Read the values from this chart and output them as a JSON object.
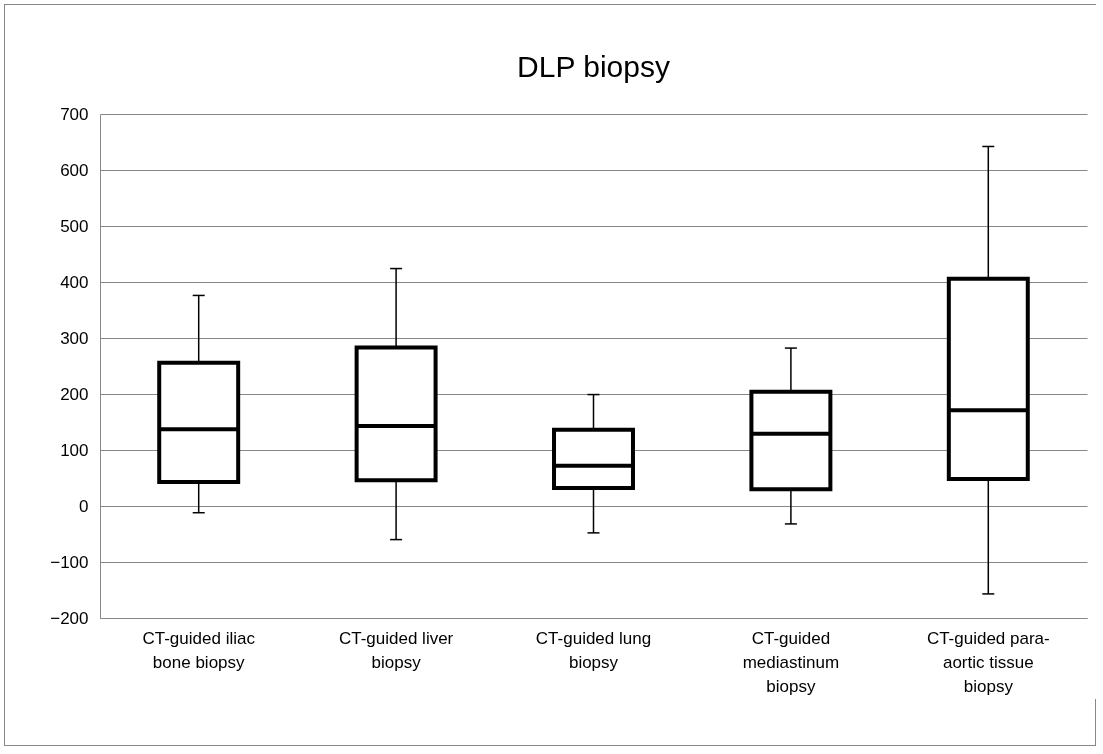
{
  "chart_data": {
    "type": "box",
    "title": "DLP biopsy",
    "categories": [
      "CT-guided iliac bone biopsy",
      "CT-guided liver biopsy",
      "CT-guided lung biopsy",
      "CT-guided mediastinum biopsy",
      "CT-guided para-aortic tissue biopsy"
    ],
    "boxes": [
      {
        "low": -12,
        "q1": 43,
        "median": 137,
        "q3": 256,
        "high": 376
      },
      {
        "low": -60,
        "q1": 46,
        "median": 143,
        "q3": 283,
        "high": 424
      },
      {
        "low": -48,
        "q1": 32,
        "median": 72,
        "q3": 136,
        "high": 199
      },
      {
        "low": -32,
        "q1": 30,
        "median": 129,
        "q3": 204,
        "high": 282
      },
      {
        "low": -157,
        "q1": 48,
        "median": 171,
        "q3": 406,
        "high": 642
      }
    ],
    "ylim": [
      -200,
      700
    ],
    "yticks": [
      -200,
      -100,
      0,
      100,
      200,
      300,
      400,
      500,
      600,
      700
    ],
    "grid": "y"
  }
}
